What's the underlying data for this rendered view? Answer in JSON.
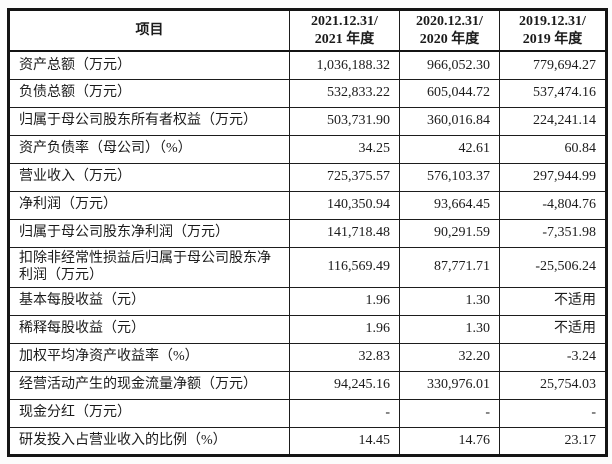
{
  "colors": {
    "border": "#141414",
    "text": "#1b1b1b",
    "table_background": "#ffffff",
    "page_background": "#fcfcfc"
  },
  "table": {
    "header": {
      "item": "项目",
      "periods": [
        {
          "line1": "2021.12.31/",
          "line2": "2021 年度"
        },
        {
          "line1": "2020.12.31/",
          "line2": "2020 年度"
        },
        {
          "line1": "2019.12.31/",
          "line2": "2019 年度"
        }
      ]
    },
    "rows": [
      {
        "label": "资产总额（万元）",
        "values": [
          "1,036,188.32",
          "966,052.30",
          "779,694.27"
        ]
      },
      {
        "label": "负债总额（万元）",
        "values": [
          "532,833.22",
          "605,044.72",
          "537,474.16"
        ]
      },
      {
        "label": "归属于母公司股东所有者权益（万元）",
        "values": [
          "503,731.90",
          "360,016.84",
          "224,241.14"
        ]
      },
      {
        "label": "资产负债率（母公司）（%）",
        "values": [
          "34.25",
          "42.61",
          "60.84"
        ]
      },
      {
        "label": "营业收入（万元）",
        "values": [
          "725,375.57",
          "576,103.37",
          "297,944.99"
        ]
      },
      {
        "label": "净利润（万元）",
        "values": [
          "140,350.94",
          "93,664.45",
          "-4,804.76"
        ]
      },
      {
        "label": "归属于母公司股东净利润（万元）",
        "values": [
          "141,718.48",
          "90,291.59",
          "-7,351.98"
        ]
      },
      {
        "label": "扣除非经常性损益后归属于母公司股东净利润（万元）",
        "values": [
          "116,569.49",
          "87,771.71",
          "-25,506.24"
        ]
      },
      {
        "label": "基本每股收益（元）",
        "values": [
          "1.96",
          "1.30",
          "不适用"
        ]
      },
      {
        "label": "稀释每股收益（元）",
        "values": [
          "1.96",
          "1.30",
          "不适用"
        ]
      },
      {
        "label": "加权平均净资产收益率（%）",
        "values": [
          "32.83",
          "32.20",
          "-3.24"
        ]
      },
      {
        "label": "经营活动产生的现金流量净额（万元）",
        "values": [
          "94,245.16",
          "330,976.01",
          "25,754.03"
        ]
      },
      {
        "label": "现金分红（万元）",
        "values": [
          "-",
          "-",
          "-"
        ]
      },
      {
        "label": "研发投入占营业收入的比例（%）",
        "values": [
          "14.45",
          "14.76",
          "23.17"
        ]
      }
    ]
  }
}
